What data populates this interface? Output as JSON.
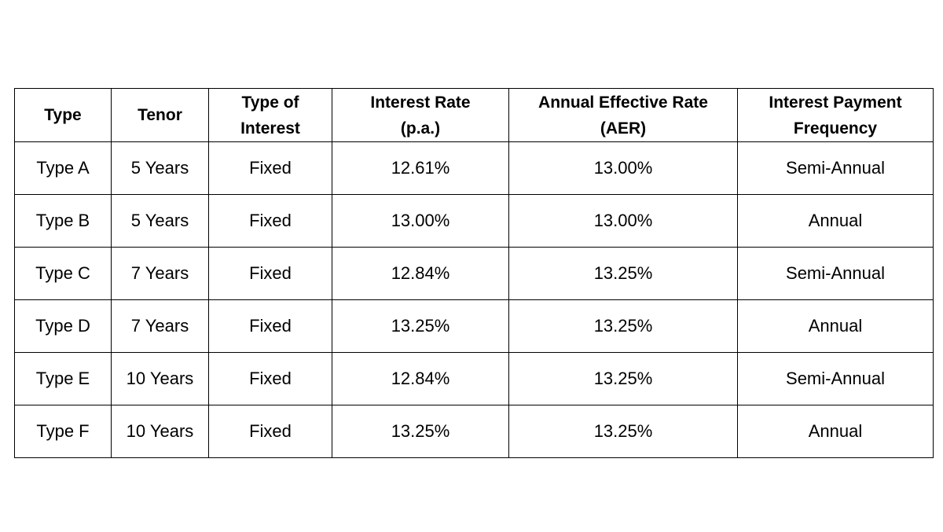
{
  "table": {
    "headers": [
      {
        "line1": "Type",
        "line2": ""
      },
      {
        "line1": "Tenor",
        "line2": ""
      },
      {
        "line1": "Type of",
        "line2": "Interest"
      },
      {
        "line1": "Interest Rate",
        "line2": "(p.a.)"
      },
      {
        "line1": "Annual Effective Rate",
        "line2": "(AER)"
      },
      {
        "line1": "Interest Payment",
        "line2": "Frequency"
      }
    ],
    "rows": [
      [
        "Type A",
        "5 Years",
        "Fixed",
        "12.61%",
        "13.00%",
        "Semi-Annual"
      ],
      [
        "Type B",
        "5 Years",
        "Fixed",
        "13.00%",
        "13.00%",
        "Annual"
      ],
      [
        "Type C",
        "7 Years",
        "Fixed",
        "12.84%",
        "13.25%",
        "Semi-Annual"
      ],
      [
        "Type D",
        "7 Years",
        "Fixed",
        "13.25%",
        "13.25%",
        "Annual"
      ],
      [
        "Type E",
        "10 Years",
        "Fixed",
        "12.84%",
        "13.25%",
        "Semi-Annual"
      ],
      [
        "Type F",
        "10 Years",
        "Fixed",
        "13.25%",
        "13.25%",
        "Annual"
      ]
    ]
  }
}
